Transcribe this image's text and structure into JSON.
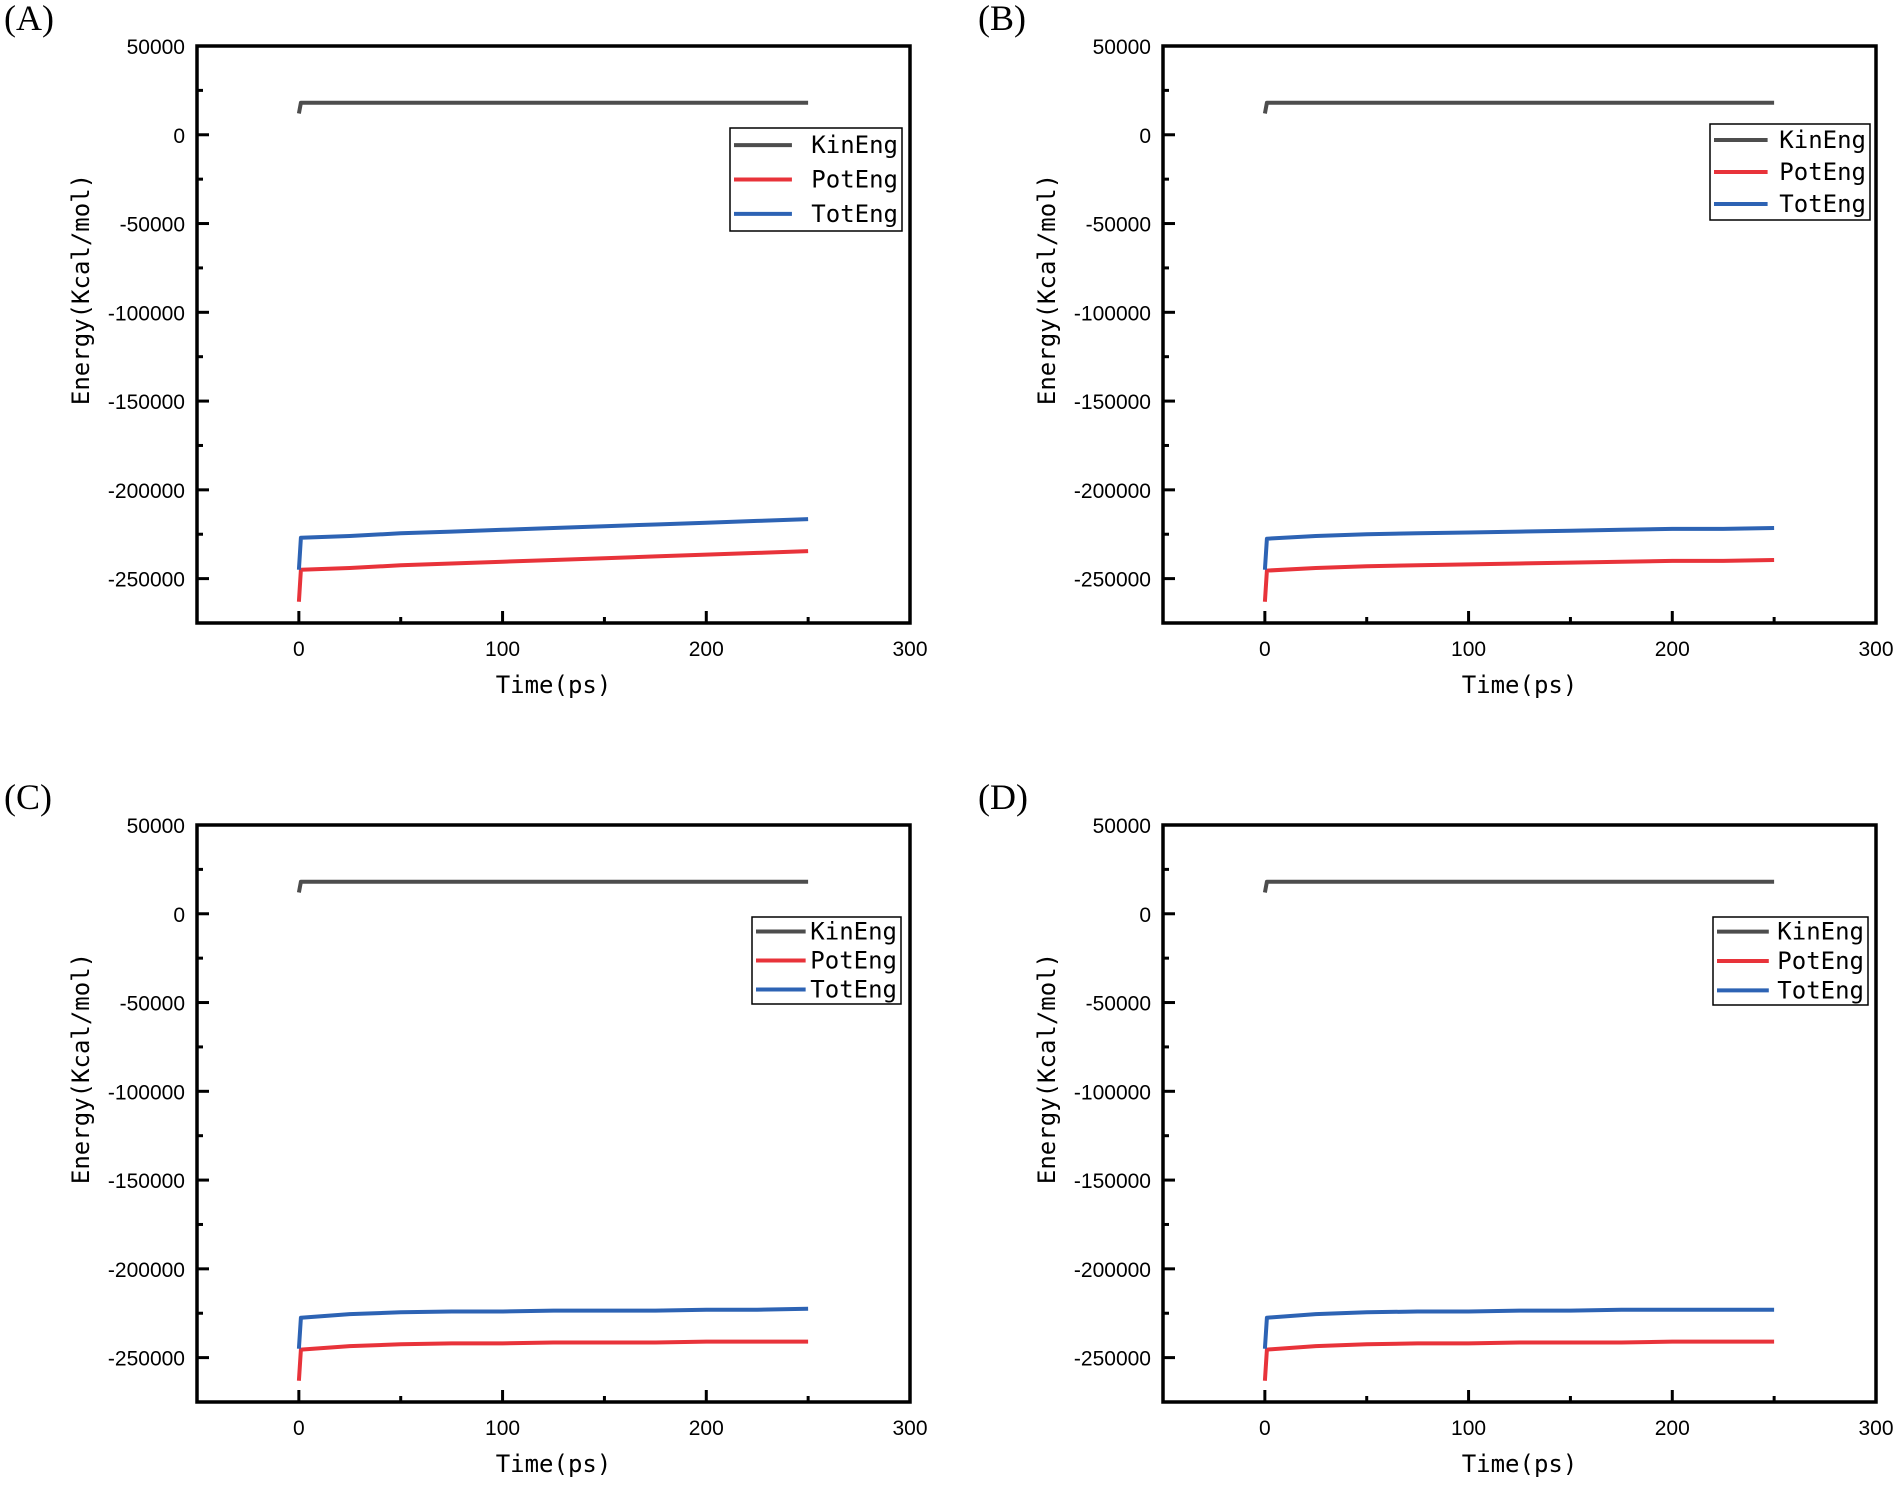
{
  "chart_data": [
    {
      "panel_label": "(A)",
      "type": "line",
      "xlabel": "Time(ps)",
      "ylabel": "Energy(Kcal/mol)",
      "xlim": [
        -50,
        300
      ],
      "ylim": [
        -275000,
        50000
      ],
      "xticks": [
        "0",
        "100",
        "200",
        "300"
      ],
      "yticks": [
        "50000",
        "0",
        "-50000",
        "-100000",
        "-150000",
        "-200000",
        "-250000"
      ],
      "legend_position": "upper-right",
      "grid": false,
      "x": [
        0,
        1,
        25,
        50,
        75,
        100,
        125,
        150,
        175,
        200,
        225,
        250
      ],
      "series": [
        {
          "name": "KinEng",
          "color": "#4d4d4d",
          "values": [
            12000,
            18000,
            18000,
            18000,
            18000,
            18000,
            18000,
            18000,
            18000,
            18000,
            18000,
            18000
          ]
        },
        {
          "name": "PotEng",
          "color": "#e8333a",
          "values": [
            -263000,
            -245000,
            -244000,
            -242500,
            -241500,
            -240500,
            -239500,
            -238500,
            -237500,
            -236500,
            -235500,
            -234500
          ]
        },
        {
          "name": "TotEng",
          "color": "#2d63b4",
          "values": [
            -245000,
            -227000,
            -226000,
            -224500,
            -223500,
            -222500,
            -221500,
            -220500,
            -219500,
            -218500,
            -217500,
            -216500
          ]
        }
      ]
    },
    {
      "panel_label": "(B)",
      "type": "line",
      "xlabel": "Time(ps)",
      "ylabel": "Energy(Kcal/mol)",
      "xlim": [
        -50,
        300
      ],
      "ylim": [
        -275000,
        50000
      ],
      "xticks": [
        "0",
        "100",
        "200",
        "300"
      ],
      "yticks": [
        "50000",
        "0",
        "-50000",
        "-100000",
        "-150000",
        "-200000",
        "-250000"
      ],
      "legend_position": "upper-right",
      "grid": false,
      "x": [
        0,
        1,
        25,
        50,
        75,
        100,
        125,
        150,
        175,
        200,
        225,
        250
      ],
      "series": [
        {
          "name": "KinEng",
          "color": "#4d4d4d",
          "values": [
            12000,
            18000,
            18000,
            18000,
            18000,
            18000,
            18000,
            18000,
            18000,
            18000,
            18000,
            18000
          ]
        },
        {
          "name": "PotEng",
          "color": "#e8333a",
          "values": [
            -263000,
            -245500,
            -244000,
            -243000,
            -242500,
            -242000,
            -241500,
            -241000,
            -240500,
            -240000,
            -240000,
            -239500
          ]
        },
        {
          "name": "TotEng",
          "color": "#2d63b4",
          "values": [
            -245000,
            -227500,
            -226000,
            -225000,
            -224500,
            -224000,
            -223500,
            -223000,
            -222500,
            -222000,
            -222000,
            -221500
          ]
        }
      ]
    },
    {
      "panel_label": "(C)",
      "type": "line",
      "xlabel": "Time(ps)",
      "ylabel": "Energy(Kcal/mol)",
      "xlim": [
        -50,
        300
      ],
      "ylim": [
        -275000,
        50000
      ],
      "xticks": [
        "0",
        "100",
        "200",
        "300"
      ],
      "yticks": [
        "50000",
        "0",
        "-50000",
        "-100000",
        "-150000",
        "-200000",
        "-250000"
      ],
      "legend_position": "upper-right",
      "grid": false,
      "x": [
        0,
        1,
        25,
        50,
        75,
        100,
        125,
        150,
        175,
        200,
        225,
        250
      ],
      "series": [
        {
          "name": "KinEng",
          "color": "#4d4d4d",
          "values": [
            12000,
            18000,
            18000,
            18000,
            18000,
            18000,
            18000,
            18000,
            18000,
            18000,
            18000,
            18000
          ]
        },
        {
          "name": "PotEng",
          "color": "#e8333a",
          "values": [
            -263000,
            -245500,
            -243500,
            -242500,
            -242000,
            -242000,
            -241500,
            -241500,
            -241500,
            -241000,
            -241000,
            -241000
          ]
        },
        {
          "name": "TotEng",
          "color": "#2d63b4",
          "values": [
            -245000,
            -227500,
            -225500,
            -224500,
            -224000,
            -224000,
            -223500,
            -223500,
            -223500,
            -223000,
            -223000,
            -222500
          ]
        }
      ]
    },
    {
      "panel_label": "(D)",
      "type": "line",
      "xlabel": "Time(ps)",
      "ylabel": "Energy(Kcal/mol)",
      "xlim": [
        -50,
        300
      ],
      "ylim": [
        -275000,
        50000
      ],
      "xticks": [
        "0",
        "100",
        "200",
        "300"
      ],
      "yticks": [
        "50000",
        "0",
        "-50000",
        "-100000",
        "-150000",
        "-200000",
        "-250000"
      ],
      "legend_position": "upper-right",
      "grid": false,
      "x": [
        0,
        1,
        25,
        50,
        75,
        100,
        125,
        150,
        175,
        200,
        225,
        250
      ],
      "series": [
        {
          "name": "KinEng",
          "color": "#4d4d4d",
          "values": [
            12000,
            18000,
            18000,
            18000,
            18000,
            18000,
            18000,
            18000,
            18000,
            18000,
            18000,
            18000
          ]
        },
        {
          "name": "PotEng",
          "color": "#e8333a",
          "values": [
            -263000,
            -245500,
            -243500,
            -242500,
            -242000,
            -242000,
            -241500,
            -241500,
            -241500,
            -241000,
            -241000,
            -241000
          ]
        },
        {
          "name": "TotEng",
          "color": "#2d63b4",
          "values": [
            -245000,
            -227500,
            -225500,
            -224500,
            -224000,
            -224000,
            -223500,
            -223500,
            -223000,
            -223000,
            -223000,
            -223000
          ]
        }
      ]
    }
  ]
}
